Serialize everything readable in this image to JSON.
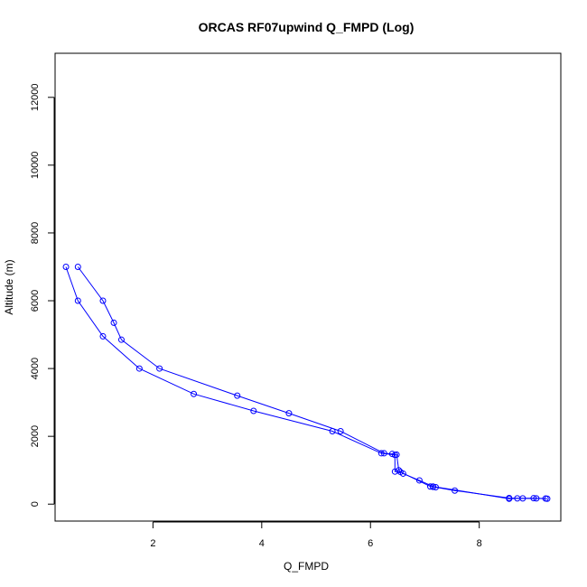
{
  "chart_data": {
    "type": "line",
    "title": "ORCAS RF07upwind Q_FMPD (Log)",
    "xlabel": "Q_FMPD",
    "ylabel": "Altitude (m)",
    "xlim": [
      0.2,
      9.5
    ],
    "ylim": [
      -500,
      13300
    ],
    "x_ticks": [
      2,
      4,
      6,
      8
    ],
    "y_ticks": [
      0,
      2000,
      4000,
      6000,
      8000,
      10000,
      12000
    ],
    "x_tick_labels": [
      "2",
      "4",
      "6",
      "8"
    ],
    "y_tick_labels": [
      "0",
      "2000",
      "4000",
      "6000",
      "8000",
      "10000",
      "12000"
    ],
    "grid": false,
    "marker": "open-circle",
    "colors": {
      "series": "#0000ff",
      "axis": "#000000",
      "background": "#ffffff"
    },
    "series": [
      {
        "x": [
          9.25,
          9.05,
          8.8,
          8.55,
          7.55,
          7.2,
          7.15,
          7.1,
          6.55,
          6.45,
          6.45,
          6.2,
          5.3,
          3.85,
          2.75,
          1.75,
          1.08,
          0.62,
          0.4
        ],
        "y": [
          160,
          170,
          170,
          180,
          400,
          500,
          510,
          520,
          950,
          960,
          1450,
          1500,
          2150,
          2750,
          3250,
          4000,
          4950,
          6000,
          7000
        ]
      },
      {
        "x": [
          0.62,
          1.08,
          1.28,
          1.42,
          2.12,
          3.55,
          4.5,
          5.45,
          6.25,
          6.4,
          6.48,
          6.52,
          6.6,
          6.9,
          7.15,
          8.55,
          8.7,
          9.0,
          9.22
        ],
        "y": [
          7000,
          6000,
          5350,
          4850,
          4000,
          3200,
          2680,
          2150,
          1500,
          1480,
          1460,
          1000,
          900,
          700,
          520,
          160,
          170,
          175,
          165
        ]
      }
    ]
  }
}
